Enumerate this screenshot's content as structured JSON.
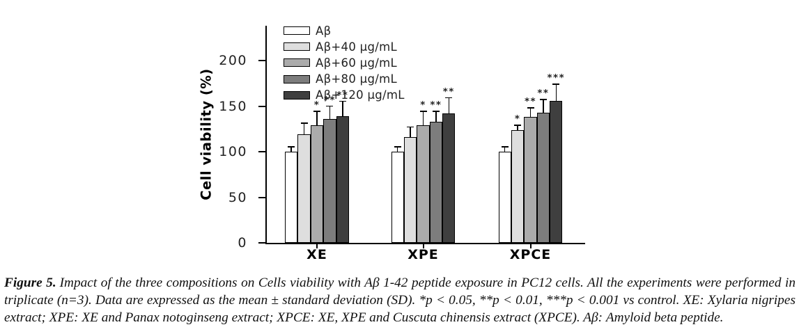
{
  "figure": {
    "caption_label": "Figure 5.",
    "caption_text": "Impact of the three compositions on Cells viability with Aβ 1-42 peptide exposure in PC12 cells. All the experiments were performed in triplicate (n=3). Data are expressed as the mean ± standard deviation (SD). *p < 0.05, **p < 0.01, ***p < 0.001 vs control. XE: Xylaria nigripes extract; XPE: XE and Panax notoginseng extract; XPCE: XE, XPE and Cuscuta chinensis extract (XPCE). Aβ: Amyloid beta peptide."
  },
  "chart_data": {
    "type": "bar",
    "title": "",
    "xlabel": "",
    "ylabel": "Cell viability (%)",
    "ylim": [
      0,
      238
    ],
    "yticks": [
      0,
      50,
      100,
      150,
      200
    ],
    "grid": false,
    "legend_position": "upper-left-inside",
    "bar_border_color": "#000000",
    "categories": [
      "XE",
      "XPE",
      "XPCE"
    ],
    "series": [
      {
        "name": "Aβ",
        "color": "#ffffff",
        "values": [
          100,
          100,
          100
        ],
        "sd": [
          5,
          5,
          5
        ],
        "sig": [
          "",
          "",
          ""
        ]
      },
      {
        "name": "Aβ+40 μg/mL",
        "color": "#dedede",
        "values": [
          119,
          116,
          124
        ],
        "sd": [
          12,
          11,
          5
        ],
        "sig": [
          "",
          "",
          "*"
        ]
      },
      {
        "name": "Aβ+60 μg/mL",
        "color": "#ababab",
        "values": [
          129,
          129,
          138
        ],
        "sd": [
          15,
          15,
          10
        ],
        "sig": [
          "*",
          "*",
          "**"
        ]
      },
      {
        "name": "Aβ+80 μg/mL",
        "color": "#7d7d7d",
        "values": [
          136,
          133,
          143
        ],
        "sd": [
          14,
          11,
          14
        ],
        "sig": [
          "**",
          "**",
          "**"
        ]
      },
      {
        "name": "Aβ+120 μg/mL",
        "color": "#3f3f3f",
        "values": [
          139,
          142,
          156
        ],
        "sd": [
          16,
          17,
          18
        ],
        "sig": [
          "**",
          "**",
          "***"
        ]
      }
    ]
  }
}
